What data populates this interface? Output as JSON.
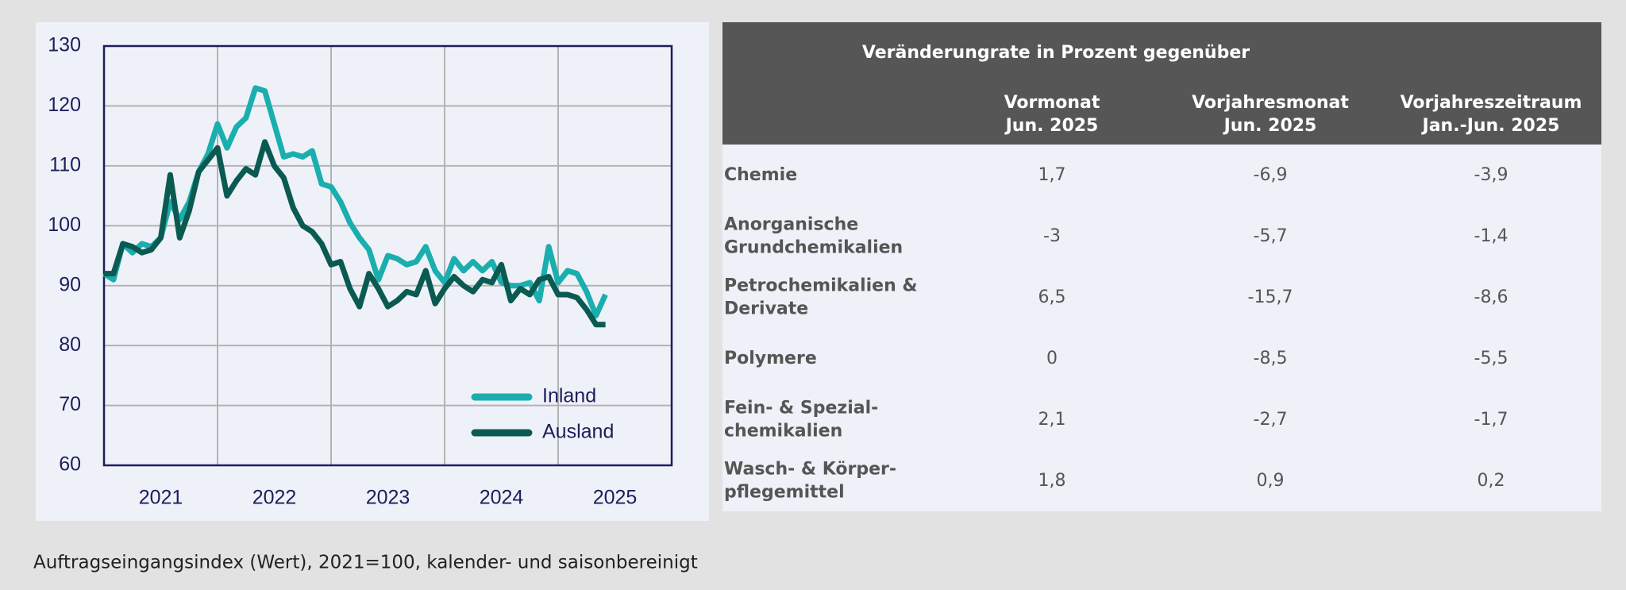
{
  "chart_data": {
    "type": "line",
    "caption": "Auftragseingangsindex (Wert), 2021=100, kalender- und saisonbereinigt",
    "x": [
      "2021-01",
      "2021-02",
      "2021-03",
      "2021-04",
      "2021-05",
      "2021-06",
      "2021-07",
      "2021-08",
      "2021-09",
      "2021-10",
      "2021-11",
      "2021-12",
      "2022-01",
      "2022-02",
      "2022-03",
      "2022-04",
      "2022-05",
      "2022-06",
      "2022-07",
      "2022-08",
      "2022-09",
      "2022-10",
      "2022-11",
      "2022-12",
      "2023-01",
      "2023-02",
      "2023-03",
      "2023-04",
      "2023-05",
      "2023-06",
      "2023-07",
      "2023-08",
      "2023-09",
      "2023-10",
      "2023-11",
      "2023-12",
      "2024-01",
      "2024-02",
      "2024-03",
      "2024-04",
      "2024-05",
      "2024-06",
      "2024-07",
      "2024-08",
      "2024-09",
      "2024-10",
      "2024-11",
      "2024-12",
      "2025-01",
      "2025-02",
      "2025-03",
      "2025-04",
      "2025-05",
      "2025-06"
    ],
    "series": [
      {
        "name": "Inland",
        "color": "#1aaeae",
        "values": [
          92,
          91,
          97,
          95.5,
          97,
          96.5,
          98,
          104,
          101,
          104,
          109,
          112,
          117,
          113,
          116.5,
          118,
          123,
          122.5,
          117,
          111.5,
          112,
          111.5,
          112.5,
          107,
          106.5,
          104,
          100.5,
          98,
          96,
          91,
          95,
          94.5,
          93.5,
          94,
          96.5,
          92.5,
          90.5,
          94.5,
          92.5,
          94,
          92.5,
          94,
          90.5,
          90,
          90,
          90.5,
          87.5,
          96.5,
          90.5,
          92.5,
          92,
          89,
          85,
          88.5
        ]
      },
      {
        "name": "Ausland",
        "color": "#0b5a52",
        "values": [
          92,
          92,
          97,
          96.5,
          95.5,
          96,
          98,
          108.5,
          98,
          102.5,
          109,
          111,
          113,
          105,
          107.5,
          109.5,
          108.5,
          114,
          110,
          108,
          103,
          100,
          99,
          97,
          93.5,
          94,
          89.5,
          86.5,
          92,
          89.5,
          86.5,
          87.5,
          89,
          88.5,
          92.5,
          87,
          89.5,
          91.5,
          90,
          89,
          91,
          90.5,
          93.5,
          87.5,
          89.5,
          88.5,
          91,
          91.5,
          88.5,
          88.5,
          88,
          86,
          83.5,
          83.5
        ]
      }
    ],
    "xlim": [
      2021,
      2026
    ],
    "xticks": [
      2021,
      2022,
      2023,
      2024,
      2025
    ],
    "ylim": [
      60,
      130
    ],
    "yticks": [
      60,
      70,
      80,
      90,
      100,
      110,
      120,
      130
    ],
    "grid": true,
    "legend": "lower right"
  },
  "table": {
    "title": "Veränderungrate in Prozent gegenüber",
    "columns": [
      [
        "Vormonat",
        "Jun. 2025"
      ],
      [
        "Vorjahresmonat",
        "Jun. 2025"
      ],
      [
        "Vorjahreszeitraum",
        "Jan.-Jun. 2025"
      ]
    ],
    "rows": [
      {
        "label": [
          "Chemie"
        ],
        "values": [
          "1,7",
          "-6,9",
          "-3,9"
        ]
      },
      {
        "label": [
          "Anorganische",
          "Grundchemikalien"
        ],
        "values": [
          "-3",
          "-5,7",
          "-1,4"
        ]
      },
      {
        "label": [
          "Petrochemikalien &",
          "Derivate"
        ],
        "values": [
          "6,5",
          "-15,7",
          "-8,6"
        ]
      },
      {
        "label": [
          "Polymere"
        ],
        "values": [
          "0",
          "-8,5",
          "-5,5"
        ]
      },
      {
        "label": [
          "Fein- & Spezial-",
          "chemikalien"
        ],
        "values": [
          "2,1",
          "-2,7",
          "-1,7"
        ]
      },
      {
        "label": [
          "Wasch- & Körper-",
          "pflegemittel"
        ],
        "values": [
          "1,8",
          "0,9",
          "0,2"
        ]
      }
    ]
  }
}
